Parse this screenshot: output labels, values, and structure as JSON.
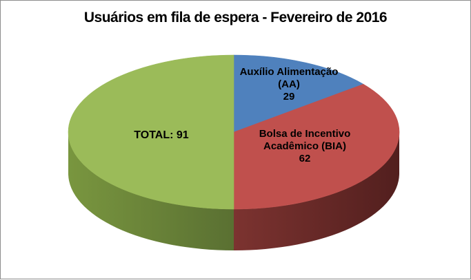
{
  "frame": {
    "border_color": "#8C8C8C",
    "background_color": "#FFFFFF"
  },
  "chart_data": {
    "type": "pie",
    "style": "3d",
    "title": "Usuários em fila de espera - Fevereiro de 2016",
    "legend": "none",
    "label_color": "#000000",
    "total": 91,
    "slices": [
      {
        "name": "Auxílio Alimentação (AA)",
        "value": 29,
        "color": "#4F81BD",
        "side_from": "#44709F",
        "side_to": "#35587D",
        "lines": [
          "Auxílio Alimentação",
          "(AA)",
          "29"
        ]
      },
      {
        "name": "Bolsa de Incentivo Acadêmico (BIA)",
        "value": 62,
        "color": "#C0504D",
        "side_from": "#7C3330",
        "side_to": "#521F1E",
        "lines": [
          "Bolsa de Incentivo",
          "Acadêmico (BIA)",
          "62"
        ]
      },
      {
        "name": "TOTAL",
        "value": 91,
        "color": "#9BBB59",
        "side_from": "#79963F",
        "side_to": "#5A7032",
        "lines": [
          "TOTAL: 91"
        ]
      }
    ]
  }
}
